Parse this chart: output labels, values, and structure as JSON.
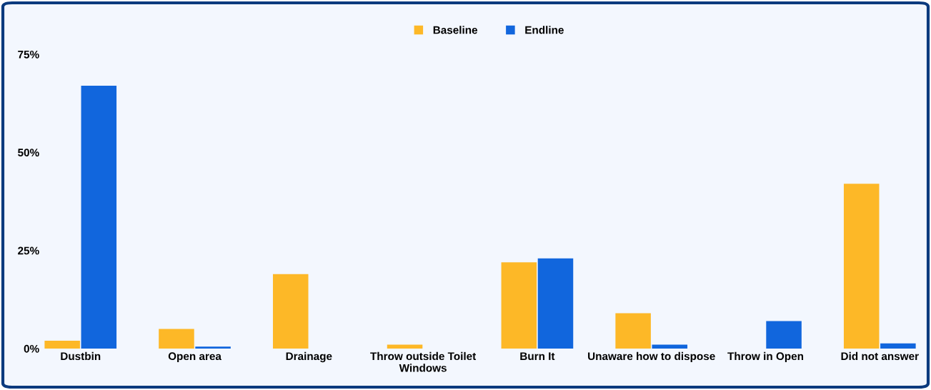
{
  "chart_data": {
    "type": "bar",
    "categories": [
      "Dustbin",
      "Open area",
      "Drainage",
      "Throw outside Toilet\nWindows",
      "Burn It",
      "Unaware how to dispose",
      "Throw in Open",
      "Did not answer"
    ],
    "series": [
      {
        "name": "Baseline",
        "color": "#fdb827",
        "values": [
          2,
          5,
          19,
          1,
          22,
          9,
          null,
          42
        ]
      },
      {
        "name": "Endline",
        "color": "#1166dd",
        "values": [
          67,
          0.5,
          null,
          null,
          23,
          1,
          7,
          1.3
        ]
      }
    ],
    "ylim": [
      0,
      75
    ],
    "yticks": [
      {
        "value": 0,
        "label": "0%"
      },
      {
        "value": 25,
        "label": "25%"
      },
      {
        "value": 50,
        "label": "50%"
      },
      {
        "value": 75,
        "label": "75%"
      }
    ],
    "grid": false,
    "legend": "top"
  }
}
